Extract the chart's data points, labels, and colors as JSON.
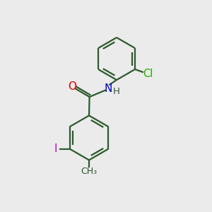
{
  "background_color": "#ebebeb",
  "bond_color": "#2d5a2d",
  "bond_width": 1.6,
  "atom_colors": {
    "O": "#dd0000",
    "N": "#0000cc",
    "Cl": "#22aa00",
    "I": "#cc00bb",
    "C": "#2d5a2d",
    "H": "#2d5a2d"
  },
  "font_size_atoms": 10,
  "figsize": [
    3.0,
    3.0
  ],
  "dpi": 100,
  "xlim": [
    0,
    10
  ],
  "ylim": [
    0,
    10
  ]
}
